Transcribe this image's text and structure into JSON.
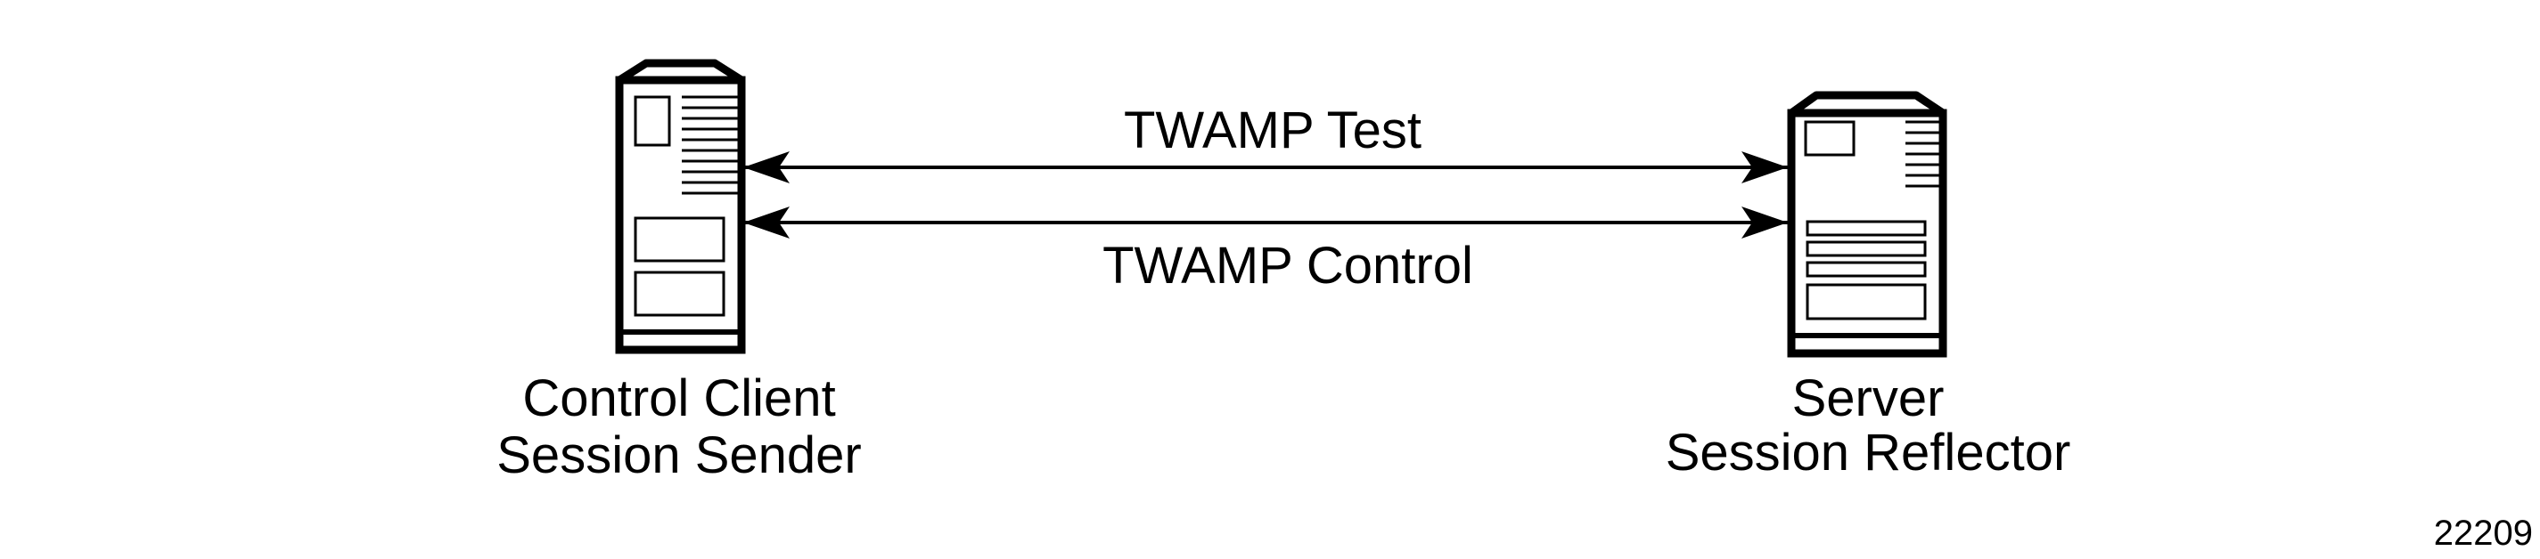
{
  "colors": {
    "stroke": "#000000",
    "background": "#ffffff"
  },
  "left_node": {
    "icon": "server-tower-icon",
    "line1": "Control Client",
    "line2": "Session Sender"
  },
  "right_node": {
    "icon": "server-tower-icon",
    "line1": "Server",
    "line2": "Session Reflector"
  },
  "links": {
    "test": {
      "label": "TWAMP Test",
      "direction": "bidirectional"
    },
    "control": {
      "label": "TWAMP Control",
      "direction": "bidirectional"
    }
  },
  "figure_number": "22209"
}
